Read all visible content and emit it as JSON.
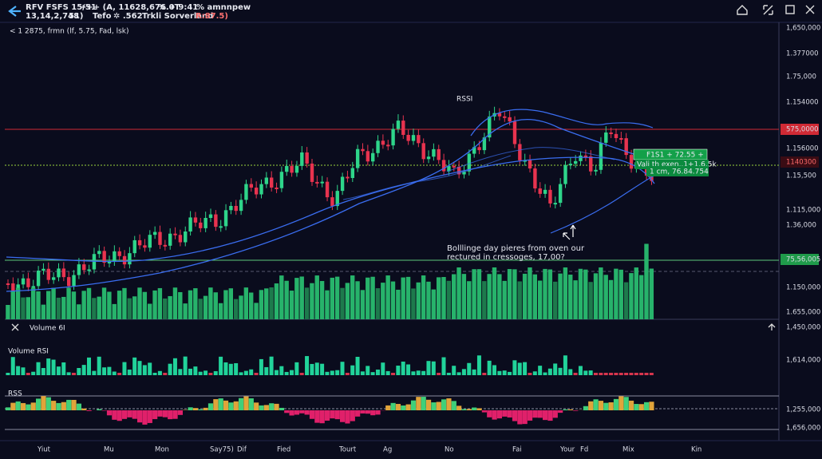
{
  "status_bar": {
    "line1": [
      "RFV FSFS 15/51",
      "+++ (A, 11628,676.0T",
      "% + 9:41",
      "% amnnpew"
    ],
    "line2": [
      "13,14,2,748",
      "51)",
      "Tefo",
      "✲ .562",
      "Trkli Sorverland",
      "R:87.5)"
    ]
  },
  "toolbar": "< 1 2875, frmn (lf, 5.75, Fad, lsk)",
  "price_axis": [
    "1,650,000",
    "1.377000",
    "1.75,000",
    "1.154000",
    "575,0000",
    "1.156000",
    "1140300",
    "1.15,500",
    "1.115,000",
    "1.36,000",
    "75,56,005",
    "1.150,000",
    "1.655,000",
    "1,450,000",
    "1,614,000",
    "1,255,000",
    "1,656,000"
  ],
  "annotations": {
    "indicator": "RSSI",
    "tags": [
      "F1S1 + 72.55 +",
      "Vali th exen..1+1.6.5k",
      "1 cm, 76.84.754"
    ],
    "note": [
      "Bolllinge day pieres from oven our",
      "rectured in cressoges, 17,00?"
    ]
  },
  "panels": {
    "volume_header": "Volume 6I",
    "volume_rsi": "Volume RSI",
    "rss": "RSS"
  },
  "x_axis": [
    "Yiut",
    "Mu",
    "Mon",
    "Say75)",
    "Dif",
    "Fied",
    "Tourt",
    "Ag",
    "No",
    "Fai",
    "Your",
    "Fd",
    "Mix",
    "Kin"
  ]
}
